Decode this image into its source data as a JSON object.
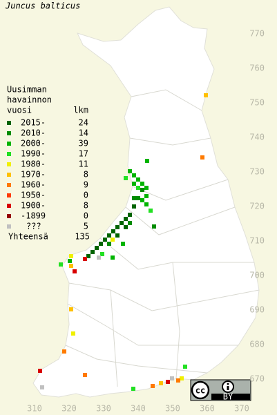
{
  "title": "Juncus balticus",
  "legend": {
    "header": [
      "Uusimman",
      "havainnon",
      "vuosi"
    ],
    "count_header": "lkm",
    "rows": [
      {
        "label": "2015-",
        "count": 24,
        "color": "#006400"
      },
      {
        "label": "2010-",
        "count": 14,
        "color": "#008c00"
      },
      {
        "label": "2000-",
        "count": 39,
        "color": "#00b400"
      },
      {
        "label": "1990-",
        "count": 17,
        "color": "#22e022"
      },
      {
        "label": "1980-",
        "count": 11,
        "color": "#f0f000"
      },
      {
        "label": "1970-",
        "count": 8,
        "color": "#ffc000"
      },
      {
        "label": "1960-",
        "count": 9,
        "color": "#ff7a00"
      },
      {
        "label": "1950-",
        "count": 0,
        "color": "#ff3a00"
      },
      {
        "label": "1900-",
        "count": 8,
        "color": "#d80000"
      },
      {
        "label": "-1899",
        "count": 0,
        "color": "#960000"
      },
      {
        "label": "???",
        "count": 5,
        "color": "#c0c0c0"
      }
    ],
    "total_label": "Yhteensä",
    "total": 135
  },
  "x_axis": [
    310,
    320,
    330,
    340,
    350,
    360,
    370
  ],
  "y_axis": [
    670,
    680,
    690,
    700,
    710,
    720,
    730,
    740,
    750,
    760,
    770
  ],
  "license": {
    "icon": "cc",
    "label": "BY"
  }
}
